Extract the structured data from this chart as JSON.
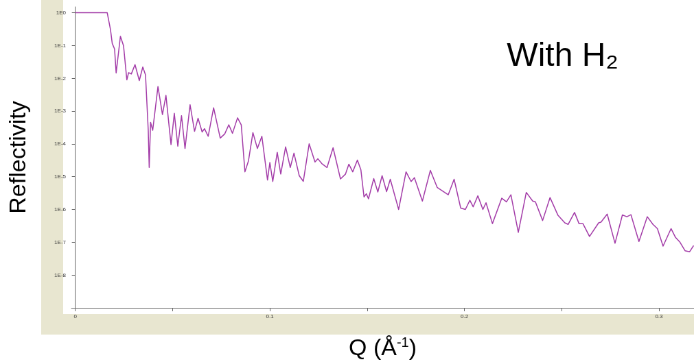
{
  "chart_data": {
    "type": "line",
    "xlabel": "Q (Å$^{-1}$)",
    "ylabel": "Reflectivity",
    "annotations": [
      "With H₂"
    ],
    "log": "y",
    "marker": "none",
    "line_style": "solid",
    "xlim": [
      -0.002,
      0.318
    ],
    "xticks": [
      0,
      {
        "value": 0.05,
        "label": null
      },
      0.1,
      {
        "value": 0.15,
        "label": null
      },
      0.2,
      {
        "value": 0.25,
        "label": null
      },
      0.3
    ],
    "ylim": [
      1e-09,
      1.5
    ],
    "yticks": [
      {
        "value": 1,
        "label": "1E0"
      },
      {
        "value": 0.1,
        "label": "1E-1"
      },
      {
        "value": 0.01,
        "label": "1E-2"
      },
      {
        "value": 0.001,
        "label": "1E-3"
      },
      {
        "value": 0.0001,
        "label": "1E-4"
      },
      {
        "value": 1e-05,
        "label": "1E-5"
      },
      {
        "value": 1e-06,
        "label": "1E-6"
      },
      {
        "value": 1e-07,
        "label": "1E-7"
      },
      {
        "value": 1e-08,
        "label": "1E-8"
      }
    ],
    "series": [
      {
        "color": "#a33ca8",
        "x": [
          0,
          0.0164,
          0.0181,
          0.019,
          0.0202,
          0.021,
          0.0232,
          0.0248,
          0.0265,
          0.0274,
          0.0288,
          0.0307,
          0.0329,
          0.0347,
          0.0361,
          0.0375,
          0.038,
          0.0387,
          0.0398,
          0.0425,
          0.0448,
          0.0466,
          0.0485,
          0.0492,
          0.0509,
          0.0527,
          0.0546,
          0.0564,
          0.059,
          0.0613,
          0.0631,
          0.0652,
          0.0664,
          0.0683,
          0.0711,
          0.0745,
          0.0768,
          0.0789,
          0.0808,
          0.0834,
          0.0853,
          0.0872,
          0.089,
          0.0913,
          0.0936,
          0.0959,
          0.0988,
          0.1,
          0.1015,
          0.1038,
          0.1056,
          0.1081,
          0.1105,
          0.1124,
          0.1151,
          0.1172,
          0.1202,
          0.1232,
          0.1247,
          0.1267,
          0.1294,
          0.1325,
          0.1363,
          0.1389,
          0.1406,
          0.1426,
          0.145,
          0.1468,
          0.1484,
          0.1496,
          0.1507,
          0.1534,
          0.1555,
          0.1577,
          0.16,
          0.1619,
          0.1662,
          0.17,
          0.1726,
          0.1743,
          0.1784,
          0.1825,
          0.186,
          0.1917,
          0.1947,
          0.1981,
          0.2005,
          0.2028,
          0.2045,
          0.2069,
          0.2095,
          0.2111,
          0.2144,
          0.2192,
          0.2216,
          0.2239,
          0.2277,
          0.2318,
          0.2351,
          0.2365,
          0.2402,
          0.244,
          0.2481,
          0.2516,
          0.2533,
          0.2566,
          0.2589,
          0.2609,
          0.2643,
          0.269,
          0.2702,
          0.2734,
          0.2774,
          0.2812,
          0.2835,
          0.2856,
          0.2897,
          0.294,
          0.2969,
          0.2992,
          0.3021,
          0.3062,
          0.3085,
          0.3108,
          0.3134,
          0.3157,
          0.3178
        ],
        "values": [
          1,
          1,
          0.3,
          0.115,
          0.078,
          0.0145,
          0.19,
          0.098,
          0.0089,
          0.0148,
          0.0135,
          0.026,
          0.0085,
          0.022,
          0.0126,
          0.00026,
          1.9e-05,
          0.00045,
          0.00026,
          0.0056,
          0.00078,
          0.003,
          0.00024,
          9.5e-05,
          0.00085,
          8.5e-05,
          0.00072,
          7.2e-05,
          0.00155,
          0.00024,
          0.0006,
          0.00023,
          0.00029,
          0.00017,
          0.00126,
          0.00015,
          0.0002,
          0.00038,
          0.00021,
          0.00062,
          0.00038,
          1.4e-05,
          3e-05,
          0.00022,
          7.2e-05,
          0.00017,
          7.9e-06,
          2.7e-05,
          7.1e-06,
          5.5e-05,
          1.2e-05,
          8.1e-05,
          1.9e-05,
          5.2e-05,
          1.07e-05,
          7.2e-06,
          0.0001,
          2.8e-05,
          3.5e-05,
          2.5e-05,
          1.9e-05,
          7.6e-05,
          8.5e-06,
          1.2e-05,
          2.4e-05,
          1.4e-05,
          3.2e-05,
          1.6e-05,
          2.4e-06,
          3e-06,
          2.1e-06,
          8.7e-06,
          3.4e-06,
          1.07e-05,
          3.5e-06,
          8.3e-06,
          1e-06,
          1.4e-05,
          7.1e-06,
          9.3e-06,
          1.8e-06,
          1.55e-05,
          4.7e-06,
          2.8e-06,
          8.3e-06,
          1.1e-06,
          1e-06,
          1.9e-06,
          1.2e-06,
          2.6e-06,
          1e-06,
          1.6e-06,
          3.7e-07,
          2.2e-06,
          1.7e-06,
          2.8e-06,
          2e-07,
          3.3e-06,
          1.8e-06,
          1.7e-06,
          4.6e-07,
          2.3e-06,
          6.6e-07,
          3.9e-07,
          3.5e-07,
          8.1e-07,
          3.7e-07,
          3.7e-07,
          1.5e-07,
          3.9e-07,
          4.1e-07,
          7.2e-07,
          9.3e-08,
          6.8e-07,
          6e-07,
          6.9e-07,
          1.05e-07,
          6e-07,
          3.5e-07,
          2.6e-07,
          7.6e-08,
          2.6e-07,
          1.4e-07,
          1e-07,
          5.5e-08,
          5.1e-08,
          7.9e-08
        ]
      }
    ]
  }
}
